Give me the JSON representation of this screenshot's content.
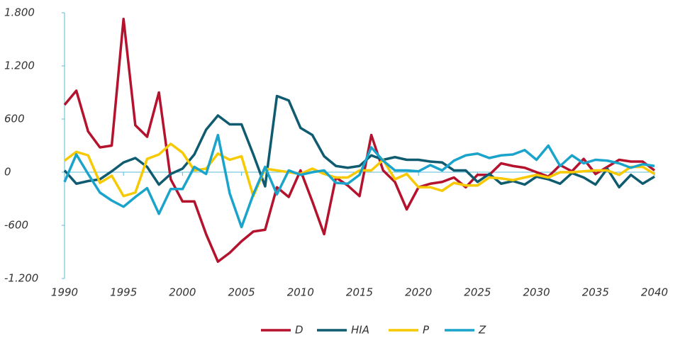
{
  "chart_data": {
    "type": "line",
    "x": [
      1990,
      1991,
      1992,
      1993,
      1994,
      1995,
      1996,
      1997,
      1998,
      1999,
      2000,
      2001,
      2002,
      2003,
      2004,
      2005,
      2006,
      2007,
      2008,
      2009,
      2010,
      2011,
      2012,
      2013,
      2014,
      2015,
      2016,
      2017,
      2018,
      2019,
      2020,
      2021,
      2022,
      2023,
      2024,
      2025,
      2026,
      2027,
      2028,
      2029,
      2030,
      2031,
      2032,
      2033,
      2034,
      2035,
      2036,
      2037,
      2038,
      2039,
      2040
    ],
    "series": [
      {
        "name": "D",
        "color": "#b5122e",
        "values": [
          760,
          920,
          460,
          280,
          300,
          1730,
          530,
          400,
          900,
          -80,
          -330,
          -330,
          -700,
          -1010,
          -910,
          -780,
          -670,
          -650,
          -170,
          -280,
          20,
          -330,
          -700,
          -60,
          -150,
          -270,
          420,
          20,
          -110,
          -420,
          -170,
          -130,
          -110,
          -60,
          -170,
          -30,
          -30,
          100,
          70,
          50,
          0,
          -50,
          80,
          10,
          150,
          -20,
          60,
          140,
          120,
          120,
          20
        ]
      },
      {
        "name": "HIA",
        "color": "#0f5b70",
        "values": [
          20,
          -130,
          -100,
          -80,
          10,
          110,
          160,
          60,
          -140,
          -20,
          40,
          200,
          480,
          640,
          540,
          540,
          200,
          -160,
          860,
          810,
          500,
          420,
          180,
          70,
          50,
          70,
          190,
          140,
          170,
          140,
          140,
          120,
          110,
          20,
          20,
          -110,
          -20,
          -130,
          -100,
          -140,
          -50,
          -80,
          -130,
          -10,
          -60,
          -140,
          40,
          -170,
          -30,
          -130,
          -50
        ]
      },
      {
        "name": "P",
        "color": "#f7c900",
        "values": [
          130,
          230,
          190,
          -120,
          -40,
          -270,
          -230,
          150,
          200,
          320,
          220,
          20,
          40,
          210,
          140,
          180,
          -270,
          40,
          20,
          0,
          -20,
          40,
          -20,
          -60,
          -60,
          20,
          20,
          140,
          -80,
          -20,
          -170,
          -170,
          -210,
          -120,
          -150,
          -150,
          -60,
          -70,
          -90,
          -60,
          -30,
          -60,
          0,
          0,
          10,
          20,
          20,
          -30,
          60,
          60,
          -20
        ]
      },
      {
        "name": "Z",
        "color": "#1ba4cb",
        "values": [
          -110,
          200,
          -20,
          -230,
          -320,
          -390,
          -280,
          -180,
          -470,
          -190,
          -190,
          60,
          -20,
          420,
          -240,
          -620,
          -250,
          60,
          -250,
          20,
          -30,
          0,
          20,
          -120,
          -130,
          -30,
          280,
          130,
          20,
          20,
          10,
          80,
          20,
          130,
          190,
          210,
          160,
          190,
          200,
          250,
          140,
          300,
          70,
          190,
          100,
          140,
          130,
          100,
          50,
          90,
          70
        ]
      }
    ],
    "xlim": [
      1990,
      2040
    ],
    "xticks": [
      1990,
      1995,
      2000,
      2005,
      2010,
      2015,
      2020,
      2025,
      2030,
      2035,
      2040
    ],
    "ylim": [
      -1200,
      1800
    ],
    "yticks": [
      {
        "value": -1200,
        "label": "-1.200"
      },
      -600,
      0,
      600,
      {
        "value": 1200,
        "label": "1.200"
      },
      {
        "value": 1800,
        "label": "1.800"
      }
    ],
    "grid": false,
    "legend": "bottom"
  }
}
